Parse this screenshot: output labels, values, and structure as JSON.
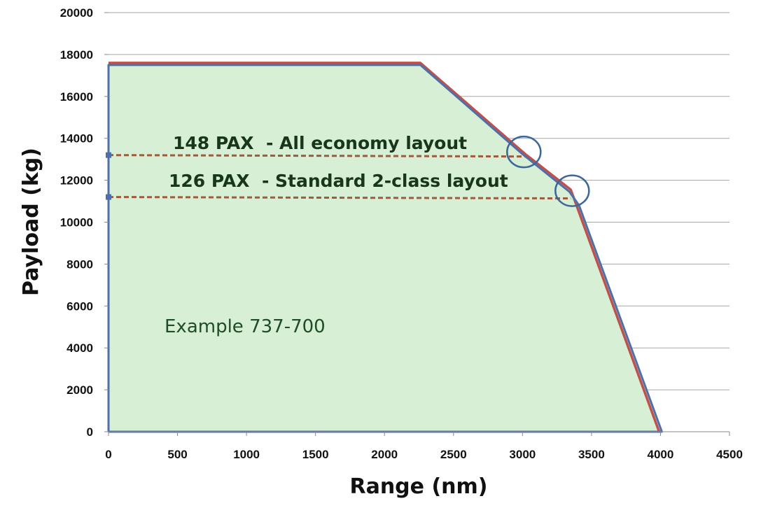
{
  "chart_data": {
    "type": "area",
    "title": "",
    "xlabel": "Range (nm)",
    "ylabel": "Payload (kg)",
    "xlim": [
      0,
      4500
    ],
    "ylim": [
      0,
      20000
    ],
    "x_ticks": [
      0,
      500,
      1000,
      1500,
      2000,
      2500,
      3000,
      3500,
      4000,
      4500
    ],
    "y_ticks": [
      0,
      2000,
      4000,
      6000,
      8000,
      10000,
      12000,
      14000,
      16000,
      18000,
      20000
    ],
    "grid": true,
    "series": [
      {
        "role": "envelope-outline",
        "color": "#c0504d",
        "points": [
          [
            0,
            17600
          ],
          [
            2260,
            17600
          ],
          [
            3020,
            13250
          ],
          [
            3350,
            11550
          ],
          [
            3990,
            0
          ]
        ]
      },
      {
        "role": "envelope-filled",
        "color": "#4f6fa8",
        "fill": "#d7efd5",
        "points": [
          [
            0,
            0
          ],
          [
            0,
            17500
          ],
          [
            2260,
            17500
          ],
          [
            3000,
            13250
          ],
          [
            3340,
            11450
          ],
          [
            3410,
            10800
          ],
          [
            4010,
            0
          ],
          [
            0,
            0
          ]
        ]
      }
    ],
    "annotations": [
      {
        "text": "148 PAX  - All economy layout",
        "y": 13200,
        "line_x": [
          0,
          3020
        ],
        "line_color": "#a05a3c",
        "circle_center": [
          3010,
          13350
        ]
      },
      {
        "text": "126 PAX  - Standard 2-class layout",
        "y": 11200,
        "line_x": [
          0,
          3350
        ],
        "line_color": "#a05a3c",
        "circle_center": [
          3360,
          11500
        ]
      }
    ],
    "note": "Example 737-700",
    "colors": {
      "fill": "#d7efd5",
      "outline_red": "#c0504d",
      "outline_blue": "#4f6fa8",
      "dashed": "#a05a3c",
      "circle": "#3d6699",
      "grid": "#a6a6a6"
    }
  }
}
